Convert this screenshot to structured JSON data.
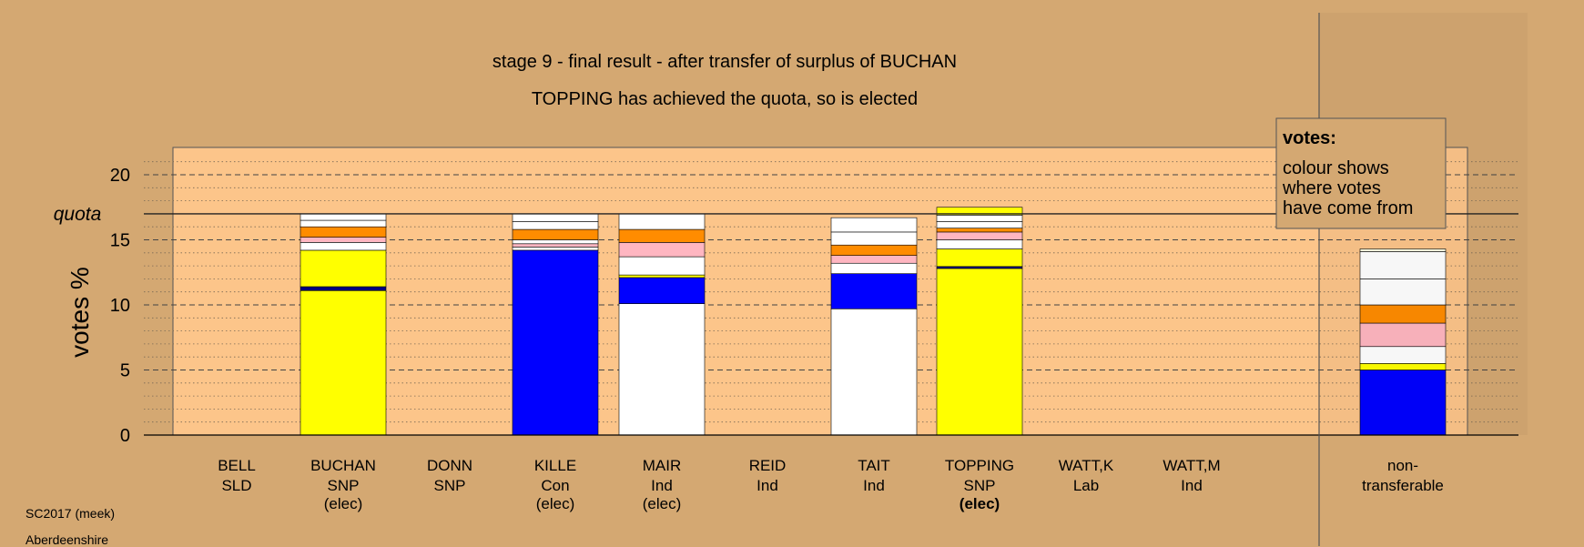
{
  "chart_data": {
    "type": "bar",
    "title": "stage 9 - final result - after transfer of surplus of BUCHAN",
    "subtitle": "TOPPING has achieved the quota, so is elected",
    "ylabel": "votes %",
    "ylim": [
      0,
      22
    ],
    "yticks": [
      "0",
      "5",
      "10",
      "15",
      "20"
    ],
    "quota_value": 17.0,
    "quota_label": "quota",
    "legend": {
      "title": "votes:",
      "lines": [
        "colour shows",
        "where votes",
        "have come from"
      ]
    },
    "colors": {
      "yellow": "#ffff00",
      "navy": "#000080",
      "white": "#ffffff",
      "pink": "#ffb6c1",
      "orange": "#ff8c00",
      "blue": "#0000ff",
      "cream": "#ffffe0"
    },
    "categories": [
      {
        "name": "BELL",
        "party": "SLD",
        "status": "",
        "segments": []
      },
      {
        "name": "BUCHAN",
        "party": "SNP",
        "status": "(elec)",
        "segments": [
          {
            "value": 11.1,
            "color": "yellow"
          },
          {
            "value": 0.3,
            "color": "navy"
          },
          {
            "value": 2.8,
            "color": "yellow"
          },
          {
            "value": 0.6,
            "color": "white"
          },
          {
            "value": 0.4,
            "color": "pink"
          },
          {
            "value": 0.8,
            "color": "orange"
          },
          {
            "value": 0.5,
            "color": "white"
          },
          {
            "value": 0.5,
            "color": "white"
          }
        ]
      },
      {
        "name": "DONN",
        "party": "SNP",
        "status": "",
        "segments": []
      },
      {
        "name": "KILLE",
        "party": "Con",
        "status": "(elec)",
        "segments": [
          {
            "value": 14.2,
            "color": "blue"
          },
          {
            "value": 0.25,
            "color": "white"
          },
          {
            "value": 0.25,
            "color": "pink"
          },
          {
            "value": 0.3,
            "color": "white"
          },
          {
            "value": 0.8,
            "color": "orange"
          },
          {
            "value": 0.6,
            "color": "white"
          },
          {
            "value": 0.6,
            "color": "white"
          }
        ]
      },
      {
        "name": "MAIR",
        "party": "Ind",
        "status": "(elec)",
        "segments": [
          {
            "value": 10.1,
            "color": "white"
          },
          {
            "value": 2.0,
            "color": "blue"
          },
          {
            "value": 0.2,
            "color": "yellow"
          },
          {
            "value": 1.4,
            "color": "white"
          },
          {
            "value": 1.1,
            "color": "pink"
          },
          {
            "value": 1.0,
            "color": "orange"
          },
          {
            "value": 1.2,
            "color": "white"
          }
        ]
      },
      {
        "name": "REID",
        "party": "Ind",
        "status": "",
        "segments": []
      },
      {
        "name": "TAIT",
        "party": "Ind",
        "status": "",
        "segments": [
          {
            "value": 9.7,
            "color": "white"
          },
          {
            "value": 2.7,
            "color": "blue"
          },
          {
            "value": 0.8,
            "color": "white"
          },
          {
            "value": 0.6,
            "color": "pink"
          },
          {
            "value": 0.8,
            "color": "orange"
          },
          {
            "value": 1.0,
            "color": "white"
          },
          {
            "value": 1.1,
            "color": "white"
          }
        ]
      },
      {
        "name": "TOPPING",
        "party": "SNP",
        "status": "(elec)",
        "status_bold": true,
        "segments": [
          {
            "value": 12.8,
            "color": "yellow"
          },
          {
            "value": 0.15,
            "color": "navy"
          },
          {
            "value": 1.35,
            "color": "yellow"
          },
          {
            "value": 0.7,
            "color": "white"
          },
          {
            "value": 0.6,
            "color": "pink"
          },
          {
            "value": 0.3,
            "color": "orange"
          },
          {
            "value": 0.5,
            "color": "white"
          },
          {
            "value": 0.5,
            "color": "white"
          },
          {
            "value": 0.6,
            "color": "yellow"
          }
        ]
      },
      {
        "name": "WATT,K",
        "party": "Lab",
        "status": "",
        "segments": []
      },
      {
        "name": "WATT,M",
        "party": "Ind",
        "status": "",
        "segments": []
      }
    ],
    "nontransferable": {
      "line1": "non-",
      "line2": "transferable",
      "segments": [
        {
          "value": 5.0,
          "color": "blue"
        },
        {
          "value": 0.5,
          "color": "yellow"
        },
        {
          "value": 1.3,
          "color": "white"
        },
        {
          "value": 1.8,
          "color": "pink"
        },
        {
          "value": 1.4,
          "color": "orange"
        },
        {
          "value": 2.0,
          "color": "white"
        },
        {
          "value": 2.1,
          "color": "white"
        },
        {
          "value": 0.2,
          "color": "cream"
        }
      ]
    }
  },
  "footer": {
    "source": "SC2017 (meek)",
    "region": "Aberdeenshire"
  }
}
